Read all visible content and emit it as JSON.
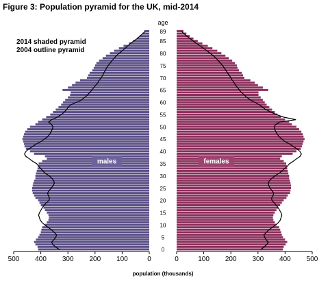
{
  "chart_data": {
    "type": "bar",
    "title": "Figure 3: Population pyramid for the UK, mid-2014",
    "age_axis_label": "age",
    "xlabel": "population (thousands)",
    "legend_lines": [
      "2014 shaded pyramid",
      "2004 outline pyramid"
    ],
    "male_label": "males",
    "female_label": "females",
    "xlim": [
      0,
      500
    ],
    "x_ticks_left": [
      "500",
      "400",
      "300",
      "200",
      "100",
      "0"
    ],
    "x_ticks_right": [
      "0",
      "100",
      "200",
      "300",
      "400",
      "500"
    ],
    "age_ticks": [
      "0",
      "5",
      "10",
      "15",
      "20",
      "25",
      "30",
      "35",
      "40",
      "45",
      "50",
      "55",
      "60",
      "65",
      "70",
      "75",
      "80",
      "85",
      "89"
    ],
    "ages": [
      0,
      1,
      2,
      3,
      4,
      5,
      6,
      7,
      8,
      9,
      10,
      11,
      12,
      13,
      14,
      15,
      16,
      17,
      18,
      19,
      20,
      21,
      22,
      23,
      24,
      25,
      26,
      27,
      28,
      29,
      30,
      31,
      32,
      33,
      34,
      35,
      36,
      37,
      38,
      39,
      40,
      41,
      42,
      43,
      44,
      45,
      46,
      47,
      48,
      49,
      50,
      51,
      52,
      53,
      54,
      55,
      56,
      57,
      58,
      59,
      60,
      61,
      62,
      63,
      64,
      65,
      66,
      67,
      68,
      69,
      70,
      71,
      72,
      73,
      74,
      75,
      76,
      77,
      78,
      79,
      80,
      81,
      82,
      83,
      84,
      85,
      86,
      87,
      88,
      89
    ],
    "colors": {
      "males": "#5b4f86",
      "females": "#8c2f5c",
      "outline": "#000000",
      "label_text": "#ffffff"
    },
    "series": [
      {
        "name": "males",
        "values": [
          410,
          412,
          420,
          425,
          418,
          410,
          405,
          400,
          398,
          395,
          385,
          378,
          372,
          370,
          372,
          378,
          385,
          390,
          400,
          405,
          410,
          420,
          425,
          430,
          432,
          432,
          430,
          428,
          425,
          420,
          420,
          418,
          415,
          412,
          410,
          408,
          395,
          378,
          385,
          425,
          440,
          455,
          460,
          462,
          465,
          468,
          465,
          462,
          458,
          450,
          440,
          420,
          410,
          395,
          380,
          365,
          355,
          345,
          335,
          325,
          318,
          310,
          300,
          292,
          290,
          320,
          300,
          285,
          272,
          255,
          230,
          225,
          220,
          210,
          205,
          200,
          195,
          185,
          172,
          160,
          145,
          130,
          112,
          95,
          75,
          60,
          45,
          35,
          25,
          18
        ]
      },
      {
        "name": "females",
        "values": [
          392,
          395,
          402,
          408,
          400,
          392,
          388,
          385,
          382,
          378,
          368,
          362,
          357,
          355,
          357,
          362,
          368,
          374,
          382,
          388,
          395,
          405,
          410,
          418,
          420,
          422,
          422,
          420,
          418,
          415,
          415,
          412,
          410,
          408,
          406,
          404,
          395,
          382,
          388,
          428,
          442,
          458,
          462,
          465,
          468,
          472,
          468,
          465,
          460,
          452,
          442,
          425,
          415,
          400,
          385,
          372,
          362,
          352,
          342,
          332,
          325,
          318,
          310,
          302,
          302,
          338,
          318,
          300,
          288,
          272,
          250,
          245,
          240,
          230,
          225,
          222,
          215,
          205,
          192,
          180,
          165,
          150,
          132,
          115,
          95,
          78,
          62,
          48,
          36,
          25
        ]
      },
      {
        "name": "2004 outline pyramid (males)",
        "values": [
          330,
          345,
          355,
          360,
          352,
          345,
          342,
          350,
          360,
          372,
          385,
          395,
          402,
          405,
          408,
          405,
          400,
          395,
          388,
          380,
          370,
          368,
          372,
          375,
          370,
          362,
          355,
          350,
          352,
          358,
          368,
          382,
          392,
          400,
          408,
          415,
          430,
          442,
          455,
          460,
          455,
          445,
          430,
          418,
          400,
          388,
          375,
          368,
          362,
          358,
          355,
          360,
          372,
          360,
          340,
          325,
          315,
          305,
          300,
          290,
          270,
          250,
          240,
          228,
          220,
          212,
          205,
          198,
          190,
          185,
          178,
          172,
          168,
          162,
          158,
          152,
          145,
          138,
          130,
          122,
          112,
          100,
          90,
          80,
          70,
          58,
          45,
          35,
          25,
          15
        ]
      },
      {
        "name": "2004 outline pyramid (females)",
        "values": [
          310,
          322,
          332,
          338,
          330,
          325,
          322,
          330,
          340,
          352,
          365,
          375,
          382,
          385,
          388,
          385,
          380,
          375,
          368,
          360,
          352,
          350,
          355,
          358,
          352,
          345,
          340,
          338,
          342,
          350,
          362,
          376,
          388,
          398,
          408,
          416,
          430,
          442,
          455,
          460,
          455,
          445,
          430,
          418,
          400,
          390,
          378,
          372,
          366,
          362,
          360,
          365,
          380,
          440,
          395,
          370,
          350,
          330,
          318,
          305,
          290,
          272,
          260,
          250,
          240,
          232,
          225,
          218,
          212,
          206,
          200,
          195,
          188,
          182,
          176,
          170,
          162,
          154,
          146,
          136,
          124,
          112,
          100,
          88,
          75,
          62,
          50,
          38,
          28,
          18
        ]
      }
    ]
  }
}
